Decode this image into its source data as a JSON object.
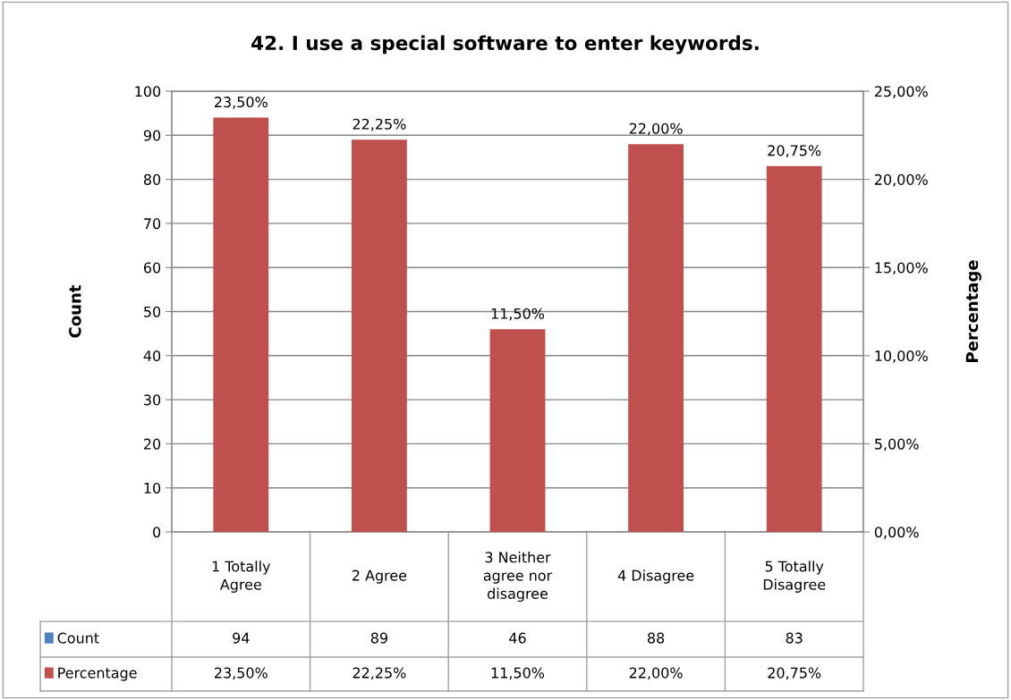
{
  "chart_data": {
    "type": "bar",
    "title": "42. I use a special software to enter keywords.",
    "ylabel": "Count",
    "y2label": "Percentage",
    "categories": [
      "1 Totally\nAgree",
      "2 Agree",
      "3 Neither\nagree nor\ndisagree",
      "4 Disagree",
      "5 Totally\nDisagree"
    ],
    "series": [
      {
        "name": "Count",
        "color": "#4f81bd",
        "values": [
          null,
          null,
          null,
          null,
          null
        ],
        "value_labels": [
          "94",
          "89",
          "46",
          "88",
          "83"
        ]
      },
      {
        "name": "Percentage",
        "color": "#c0504d",
        "axis": "y2",
        "values": [
          23.5,
          22.25,
          11.5,
          22.0,
          20.75
        ],
        "value_labels": [
          "23,50%",
          "22,25%",
          "11,50%",
          "22,00%",
          "20,75%"
        ]
      }
    ],
    "ylim": [
      0,
      100
    ],
    "yticks": [
      0,
      10,
      20,
      30,
      40,
      50,
      60,
      70,
      80,
      90,
      100
    ],
    "y2lim": [
      0,
      25
    ],
    "y2ticks": [
      {
        "value": 0,
        "label": "0,00%"
      },
      {
        "value": 5,
        "label": "5,00%"
      },
      {
        "value": 10,
        "label": "10,00%"
      },
      {
        "value": 15,
        "label": "15,00%"
      },
      {
        "value": 20,
        "label": "20,00%"
      },
      {
        "value": 25,
        "label": "25,00%"
      }
    ],
    "grid": "y",
    "legend": "bottom",
    "data_labels": true
  }
}
